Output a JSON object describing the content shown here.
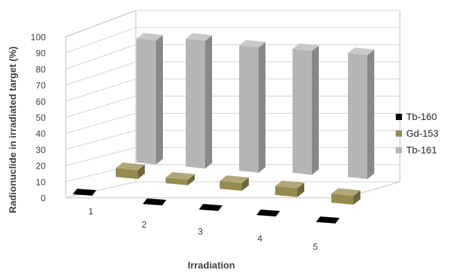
{
  "chart_data": {
    "type": "bar",
    "subtype": "3d-bar",
    "title": "",
    "xlabel": "Irradiation",
    "ylabel": "Radionuclide in irradiated target (%)",
    "categories": [
      "1",
      "2",
      "3",
      "4",
      "5"
    ],
    "ylim": [
      0,
      100
    ],
    "yticks": [
      "0",
      "10",
      "20",
      "30",
      "40",
      "50",
      "60",
      "70",
      "80",
      "90",
      "100"
    ],
    "grid": true,
    "legend_position": "right",
    "series": [
      {
        "name": "Tb-160",
        "color": "#000000",
        "values": [
          0.1,
          0.1,
          0.1,
          0.1,
          0.1
        ]
      },
      {
        "name": "Gd-153",
        "color": "#958b4d",
        "values": [
          8,
          5,
          7,
          8,
          8
        ]
      },
      {
        "name": "Tb-161",
        "color": "#b5b5b5",
        "values": [
          92,
          95,
          93,
          92,
          92
        ]
      }
    ]
  }
}
